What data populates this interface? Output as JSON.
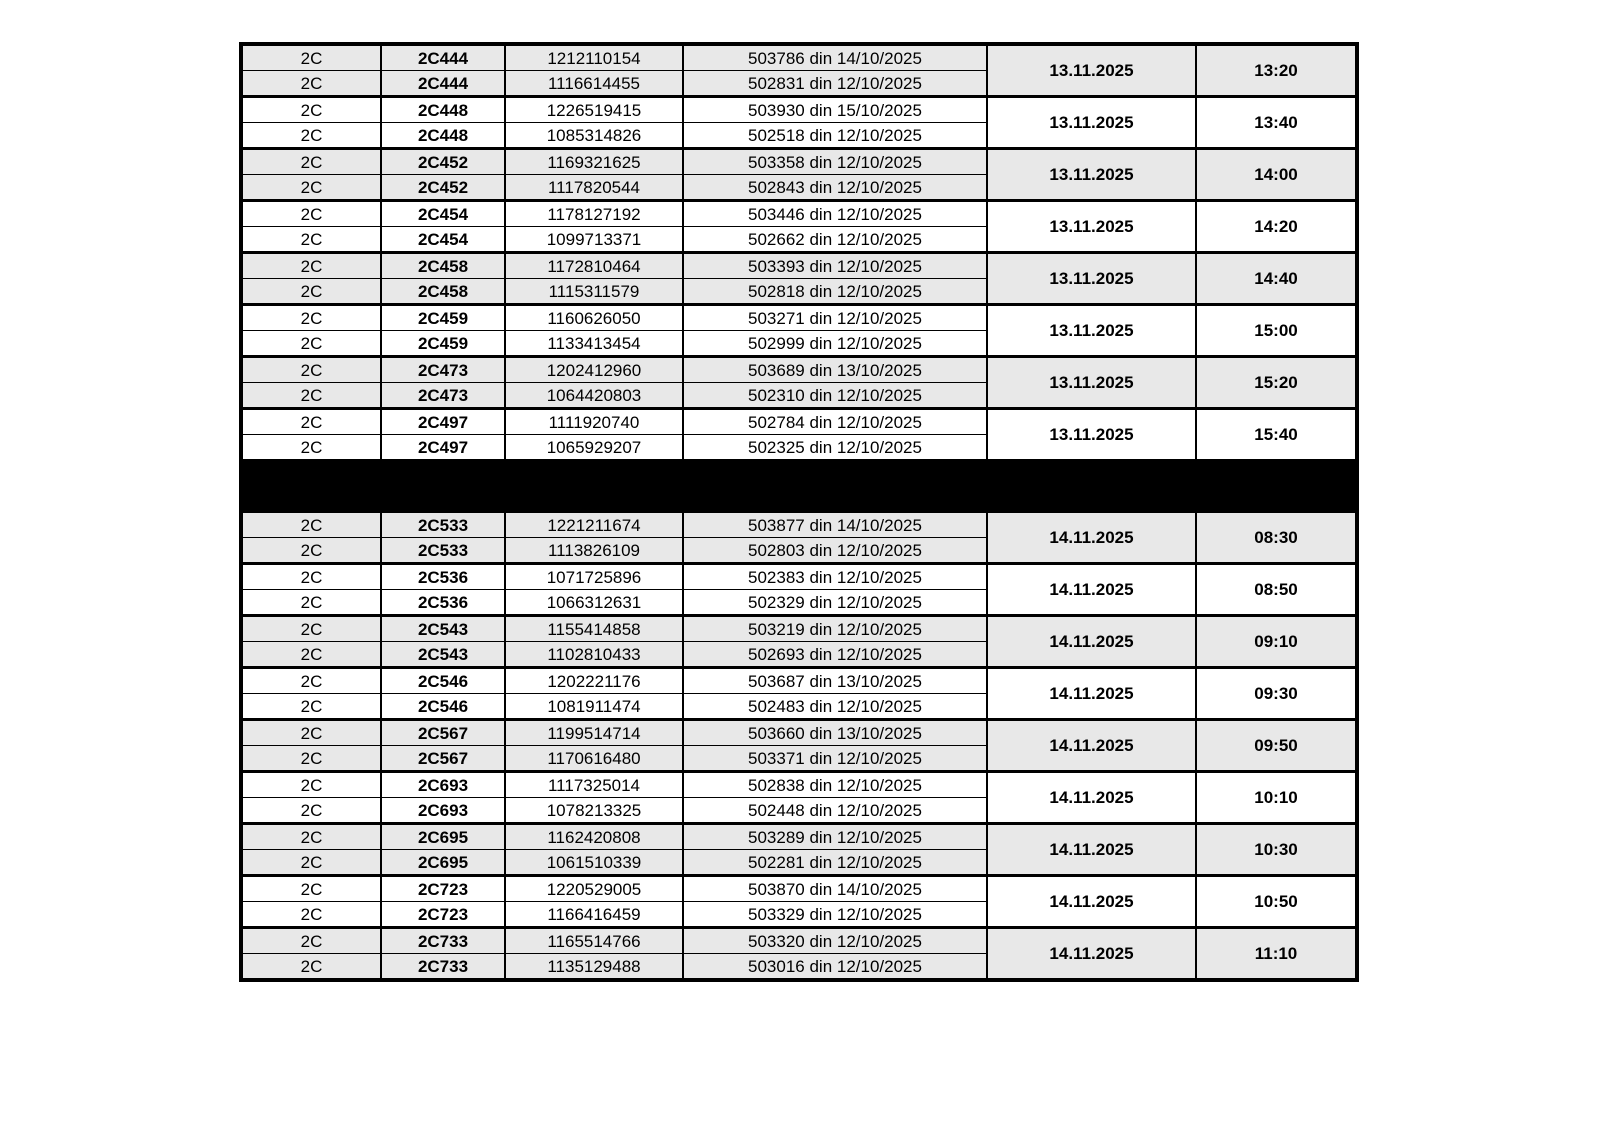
{
  "page": {
    "background": "#ffffff"
  },
  "colors": {
    "shaded_row": "#e8e8e8",
    "border": "#000000",
    "separator_band": "#000000",
    "text": "#000000"
  },
  "table": {
    "separator_label": "",
    "blocks": [
      {
        "date": "13.11.2025",
        "groups": [
          {
            "code": "2C444",
            "time": "13:20",
            "shaded": true,
            "rows": [
              {
                "class": "2C",
                "code": "2C444",
                "id": "1212110154",
                "ref": "503786 din 14/10/2025"
              },
              {
                "class": "2C",
                "code": "2C444",
                "id": "1116614455",
                "ref": "502831 din 12/10/2025"
              }
            ]
          },
          {
            "code": "2C448",
            "time": "13:40",
            "shaded": false,
            "rows": [
              {
                "class": "2C",
                "code": "2C448",
                "id": "1226519415",
                "ref": "503930 din 15/10/2025"
              },
              {
                "class": "2C",
                "code": "2C448",
                "id": "1085314826",
                "ref": "502518 din 12/10/2025"
              }
            ]
          },
          {
            "code": "2C452",
            "time": "14:00",
            "shaded": true,
            "rows": [
              {
                "class": "2C",
                "code": "2C452",
                "id": "1169321625",
                "ref": "503358 din 12/10/2025"
              },
              {
                "class": "2C",
                "code": "2C452",
                "id": "1117820544",
                "ref": "502843 din 12/10/2025"
              }
            ]
          },
          {
            "code": "2C454",
            "time": "14:20",
            "shaded": false,
            "rows": [
              {
                "class": "2C",
                "code": "2C454",
                "id": "1178127192",
                "ref": "503446 din 12/10/2025"
              },
              {
                "class": "2C",
                "code": "2C454",
                "id": "1099713371",
                "ref": "502662 din 12/10/2025"
              }
            ]
          },
          {
            "code": "2C458",
            "time": "14:40",
            "shaded": true,
            "rows": [
              {
                "class": "2C",
                "code": "2C458",
                "id": "1172810464",
                "ref": "503393 din 12/10/2025"
              },
              {
                "class": "2C",
                "code": "2C458",
                "id": "1115311579",
                "ref": "502818 din 12/10/2025"
              }
            ]
          },
          {
            "code": "2C459",
            "time": "15:00",
            "shaded": false,
            "rows": [
              {
                "class": "2C",
                "code": "2C459",
                "id": "1160626050",
                "ref": "503271 din 12/10/2025"
              },
              {
                "class": "2C",
                "code": "2C459",
                "id": "1133413454",
                "ref": "502999 din 12/10/2025"
              }
            ]
          },
          {
            "code": "2C473",
            "time": "15:20",
            "shaded": true,
            "rows": [
              {
                "class": "2C",
                "code": "2C473",
                "id": "1202412960",
                "ref": "503689 din 13/10/2025"
              },
              {
                "class": "2C",
                "code": "2C473",
                "id": "1064420803",
                "ref": "502310 din 12/10/2025"
              }
            ]
          },
          {
            "code": "2C497",
            "time": "15:40",
            "shaded": false,
            "rows": [
              {
                "class": "2C",
                "code": "2C497",
                "id": "1111920740",
                "ref": "502784 din 12/10/2025"
              },
              {
                "class": "2C",
                "code": "2C497",
                "id": "1065929207",
                "ref": "502325 din 12/10/2025"
              }
            ]
          }
        ]
      },
      {
        "date": "14.11.2025",
        "groups": [
          {
            "code": "2C533",
            "time": "08:30",
            "shaded": true,
            "rows": [
              {
                "class": "2C",
                "code": "2C533",
                "id": "1221211674",
                "ref": "503877 din 14/10/2025"
              },
              {
                "class": "2C",
                "code": "2C533",
                "id": "1113826109",
                "ref": "502803 din 12/10/2025"
              }
            ]
          },
          {
            "code": "2C536",
            "time": "08:50",
            "shaded": false,
            "rows": [
              {
                "class": "2C",
                "code": "2C536",
                "id": "1071725896",
                "ref": "502383 din 12/10/2025"
              },
              {
                "class": "2C",
                "code": "2C536",
                "id": "1066312631",
                "ref": "502329 din 12/10/2025"
              }
            ]
          },
          {
            "code": "2C543",
            "time": "09:10",
            "shaded": true,
            "rows": [
              {
                "class": "2C",
                "code": "2C543",
                "id": "1155414858",
                "ref": "503219 din 12/10/2025"
              },
              {
                "class": "2C",
                "code": "2C543",
                "id": "1102810433",
                "ref": "502693 din 12/10/2025"
              }
            ]
          },
          {
            "code": "2C546",
            "time": "09:30",
            "shaded": false,
            "rows": [
              {
                "class": "2C",
                "code": "2C546",
                "id": "1202221176",
                "ref": "503687 din 13/10/2025"
              },
              {
                "class": "2C",
                "code": "2C546",
                "id": "1081911474",
                "ref": "502483 din 12/10/2025"
              }
            ]
          },
          {
            "code": "2C567",
            "time": "09:50",
            "shaded": true,
            "rows": [
              {
                "class": "2C",
                "code": "2C567",
                "id": "1199514714",
                "ref": "503660 din 13/10/2025"
              },
              {
                "class": "2C",
                "code": "2C567",
                "id": "1170616480",
                "ref": "503371 din 12/10/2025"
              }
            ]
          },
          {
            "code": "2C693",
            "time": "10:10",
            "shaded": false,
            "rows": [
              {
                "class": "2C",
                "code": "2C693",
                "id": "1117325014",
                "ref": "502838 din 12/10/2025"
              },
              {
                "class": "2C",
                "code": "2C693",
                "id": "1078213325",
                "ref": "502448 din 12/10/2025"
              }
            ]
          },
          {
            "code": "2C695",
            "time": "10:30",
            "shaded": true,
            "rows": [
              {
                "class": "2C",
                "code": "2C695",
                "id": "1162420808",
                "ref": "503289 din 12/10/2025"
              },
              {
                "class": "2C",
                "code": "2C695",
                "id": "1061510339",
                "ref": "502281 din 12/10/2025"
              }
            ]
          },
          {
            "code": "2C723",
            "time": "10:50",
            "shaded": false,
            "rows": [
              {
                "class": "2C",
                "code": "2C723",
                "id": "1220529005",
                "ref": "503870 din 14/10/2025"
              },
              {
                "class": "2C",
                "code": "2C723",
                "id": "1166416459",
                "ref": "503329 din 12/10/2025"
              }
            ]
          },
          {
            "code": "2C733",
            "time": "11:10",
            "shaded": true,
            "rows": [
              {
                "class": "2C",
                "code": "2C733",
                "id": "1165514766",
                "ref": "503320 din 12/10/2025"
              },
              {
                "class": "2C",
                "code": "2C733",
                "id": "1135129488",
                "ref": "503016 din 12/10/2025"
              }
            ]
          }
        ]
      }
    ]
  }
}
